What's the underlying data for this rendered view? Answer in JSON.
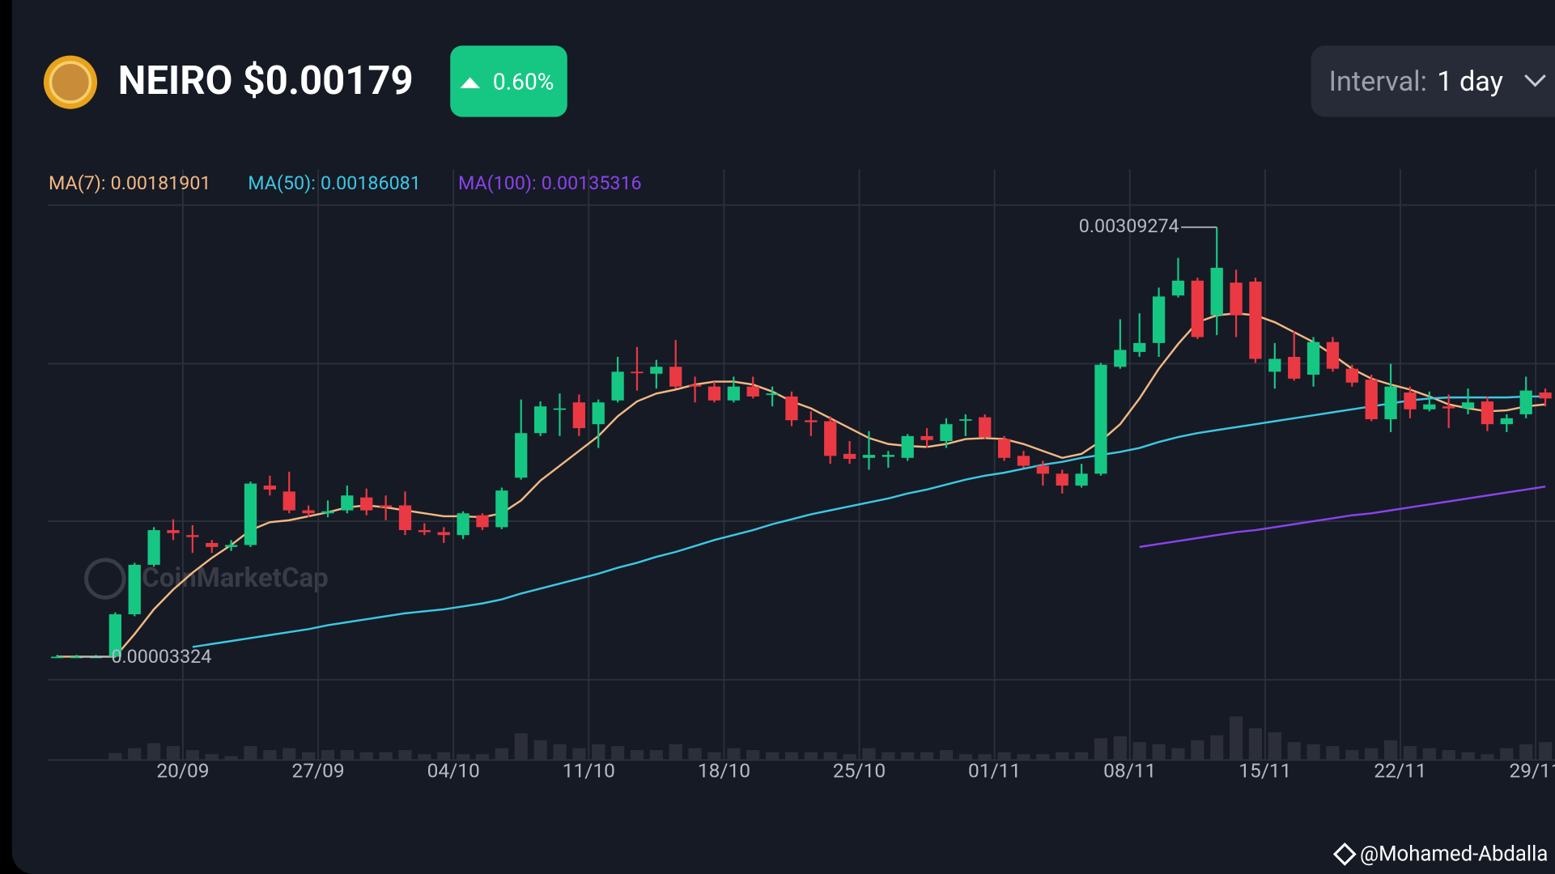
{
  "header": {
    "title": "NEIRO $0.00179",
    "change": "0.60%",
    "interval_label": "Interval:",
    "interval": "1 day"
  },
  "watermark": "CoinMarketCap",
  "credit": "@Mohamed-Abdalla",
  "chart_data": {
    "type": "candlestick",
    "up_color": "#16c784",
    "down_color": "#ea3943",
    "volume_color": "#2c2f3a",
    "grid": true,
    "ylim": [
      -0.00013,
      0.00325
    ],
    "categories": [
      null,
      null,
      null,
      null,
      null,
      null,
      null,
      "20/09",
      null,
      null,
      null,
      null,
      null,
      null,
      "27/09",
      null,
      null,
      null,
      null,
      null,
      null,
      "04/10",
      null,
      null,
      null,
      null,
      null,
      null,
      "11/10",
      null,
      null,
      null,
      null,
      null,
      null,
      "18/10",
      null,
      null,
      null,
      null,
      null,
      null,
      "25/10",
      null,
      null,
      null,
      null,
      null,
      null,
      "01/11",
      null,
      null,
      null,
      null,
      null,
      null,
      "08/11",
      null,
      null,
      null,
      null,
      null,
      null,
      "15/11",
      null,
      null,
      null,
      null,
      null,
      null,
      "22/11",
      null,
      null,
      null,
      null,
      null,
      null,
      "29/11"
    ],
    "open": [
      3.45e-05,
      3.45e-05,
      3.45e-05,
      3.45e-05,
      0.0003364,
      0.0006889,
      0.0009356,
      0.0009004,
      0.000844,
      0.0008158,
      0.0008299,
      0.0012529,
      0.0012106,
      0.0010766,
      0.0010555,
      0.0010766,
      0.0011683,
      0.0011119,
      0.0011119,
      0.0009356,
      0.0009215,
      0.0009004,
      0.0010414,
      0.0009568,
      0.0013093,
      0.0016265,
      0.0017957,
      0.0018451,
      0.00169,
      0.0018592,
      0.0020636,
      0.0020495,
      0.0020989,
      0.001972,
      0.0019579,
      0.0018592,
      0.0019579,
      0.0019015,
      0.0018874,
      0.0017182,
      0.0017111,
      0.0014785,
      0.0014503,
      0.0014573,
      0.0014503,
      0.0016054,
      0.0015701,
      0.0017182,
      0.0017393,
      0.0015842,
      0.0014644,
      0.0013939,
      0.0013375,
      0.0012529,
      0.0013375,
      0.0020989,
      0.0022046,
      0.0022681,
      0.0026065,
      0.0027122,
      0.0024655,
      0.0026981,
      0.0027052,
      0.0020636,
      0.0021694,
      0.0020425,
      0.0022751,
      0.0020848,
      0.0020072,
      0.0017252,
      0.0019156,
      0.0017957,
      0.0018169,
      0.0018028,
      0.0018521,
      0.00169,
      0.0017605,
      0.0019156
    ],
    "high": [
      4.73e-05,
      4.73e-05,
      4.73e-05,
      0.0003505,
      0.000703,
      0.0009568,
      0.0010131,
      0.0009709,
      0.0008651,
      0.0008651,
      0.0012811,
      0.0013234,
      0.0013516,
      0.0011119,
      0.0011471,
      0.0012529,
      0.0012317,
      0.0011824,
      0.0012106,
      0.000985,
      0.0009568,
      0.0010696,
      0.0010555,
      0.0012388,
      0.0018662,
      0.0018521,
      0.0019085,
      0.0019015,
      0.0018662,
      0.0021694,
      0.0022399,
      0.0021482,
      0.0022892,
      0.0020284,
      0.0019931,
      0.0020284,
      0.0020284,
      0.0019579,
      0.0019226,
      0.0017816,
      0.0017464,
      0.0015701,
      0.0016406,
      0.0014996,
      0.0016195,
      0.0016618,
      0.0017323,
      0.0017605,
      0.0017605,
      0.0016054,
      0.0014996,
      0.0014291,
      0.0013657,
      0.001408,
      0.0021271,
      0.0024373,
      0.0024796,
      0.0026629,
      0.0028744,
      0.0027334,
      0.00309274,
      0.0027898,
      0.0027334,
      0.0022681,
      0.0023527,
      0.0023104,
      0.0023104,
      0.002113,
      0.0020425,
      0.00212,
      0.0019579,
      0.0019226,
      0.0019015,
      0.0019438,
      0.0018874,
      0.0017605,
      0.0020284,
      0.0019438
    ],
    "low": [
      3.4e-05,
      3.4e-05,
      3.4e-05,
      3.324e-05,
      0.0003223,
      0.0006748,
      0.0008651,
      0.0007735,
      0.0007735,
      0.0007876,
      0.0008158,
      0.0011824,
      0.0010555,
      0.0010273,
      0.0010273,
      0.0010555,
      0.0010414,
      0.0010061,
      0.0009004,
      0.0009004,
      0.000844,
      0.0008722,
      0.0009356,
      0.0009427,
      0.0012952,
      0.0016054,
      0.0016054,
      0.0016054,
      0.0015208,
      0.0018451,
      0.0019297,
      0.0019438,
      0.0019438,
      0.0018451,
      0.0018451,
      0.0018451,
      0.0018733,
      0.0018169,
      0.0016759,
      0.0016054,
      0.001408,
      0.001408,
      0.0013657,
      0.0013798,
      0.0014291,
      0.0015208,
      0.0015208,
      0.0016054,
      0.0015842,
      0.0014291,
      0.0013798,
      0.0012529,
      0.0011965,
      0.0012388,
      0.0013234,
      0.0020848,
      0.0021694,
      0.0021694,
      0.0025924,
      0.0022963,
      0.0023245,
      0.0023104,
      0.0021271,
      0.0019438,
      0.0020002,
      0.0019579,
      0.0020636,
      0.0019579,
      0.0017111,
      0.0016336,
      0.0017323,
      0.0017816,
      0.0016618,
      0.0017605,
      0.0016406,
      0.0016336,
      0.0017323,
      0.0018169
    ],
    "close": [
      3.45e-05,
      3.45e-05,
      3.45e-05,
      0.0003364,
      0.0006889,
      0.0009356,
      0.0009145,
      0.0008863,
      0.0008158,
      0.0008299,
      0.001267,
      0.0012247,
      0.0010766,
      0.0010555,
      0.0010696,
      0.0011824,
      0.0010766,
      0.0010978,
      0.0009356,
      0.0009215,
      0.0009004,
      0.0010555,
      0.0009568,
      0.0012176,
      0.0016265,
      0.0018169,
      0.0018028,
      0.0016618,
      0.0018451,
      0.0020636,
      0.0020566,
      0.0020989,
      0.0019579,
      0.0019579,
      0.0018592,
      0.0019579,
      0.0018874,
      0.0019085,
      0.0017182,
      0.0017041,
      0.0014644,
      0.0014432,
      0.0014714,
      0.0014714,
      0.0016054,
      0.0015772,
      0.00169,
      0.0017252,
      0.0015983,
      0.0014503,
      0.0013939,
      0.0013375,
      0.0012529,
      0.0013375,
      0.002113,
      0.0022187,
      0.0022681,
      0.0025994,
      0.0027122,
      0.0023104,
      0.0028039,
      0.0024655,
      0.0021553,
      0.0021553,
      0.0020143,
      0.0022751,
      0.0020848,
      0.0019861,
      0.0017252,
      0.0019579,
      0.0017957,
      0.001831,
      0.0018028,
      0.0018451,
      0.00169,
      0.0017323,
      0.0019297,
      0.0018733
    ],
    "volume": [
      0,
      0,
      0,
      7,
      12,
      17,
      14,
      10,
      6,
      4,
      14,
      10,
      12,
      8,
      10,
      10,
      8,
      8,
      10,
      6,
      8,
      6,
      6,
      12,
      27,
      20,
      16,
      12,
      16,
      14,
      10,
      10,
      16,
      12,
      8,
      12,
      10,
      8,
      8,
      8,
      8,
      6,
      12,
      8,
      8,
      8,
      10,
      6,
      6,
      8,
      6,
      6,
      8,
      8,
      22,
      24,
      18,
      16,
      12,
      20,
      25,
      44,
      32,
      28,
      18,
      16,
      14,
      10,
      12,
      20,
      14,
      12,
      10,
      8,
      6,
      12,
      16,
      18
    ],
    "series": [
      {
        "name": "MA(7):",
        "current": 0.00181901,
        "color": "#f2b982",
        "values": [
          3.45e-05,
          3.45e-05,
          3.45e-05,
          3.45e-05,
          0.0001954,
          0.0003716,
          0.0005126,
          0.0006325,
          0.0007382,
          0.0008299,
          0.0009356,
          0.000992,
          0.0010061,
          0.0010343,
          0.0010625,
          0.0010978,
          0.0011119,
          0.0010978,
          0.0010766,
          0.0010555,
          0.0010343,
          0.0010343,
          0.0010273,
          0.0010555,
          0.0011471,
          0.0012881,
          0.0013939,
          0.0014996,
          0.0016054,
          0.0017464,
          0.0018521,
          0.0019085,
          0.0019367,
          0.001972,
          0.0019931,
          0.0019931,
          0.001972,
          0.0019226,
          0.0018521,
          0.0018028,
          0.0017323,
          0.0016618,
          0.0015913,
          0.001549,
          0.0015349,
          0.0015278,
          0.001549,
          0.0015842,
          0.0015913,
          0.0015842,
          0.001549,
          0.0014996,
          0.0014503,
          0.0014785,
          0.0015701,
          0.00169,
          0.0018733,
          0.0020848,
          0.002261,
          0.0024161,
          0.0024655,
          0.0024796,
          0.0024655,
          0.0024161,
          0.0023456,
          0.0022751,
          0.0021835,
          0.0020848,
          0.0020143,
          0.001972,
          0.0019367,
          0.0018874,
          0.001831,
          0.0018028,
          0.0017816,
          0.0017887,
          0.0018169,
          0.001831
        ]
      },
      {
        "name": "MA(50):",
        "current": 0.00186081,
        "color": "#3cc8e4",
        "values": [
          null,
          null,
          null,
          null,
          null,
          null,
          null,
          0.0001037,
          0.0001249,
          0.000146,
          0.0001672,
          0.0001883,
          0.0002095,
          0.0002306,
          0.0002588,
          0.00028,
          0.0003011,
          0.0003223,
          0.0003434,
          0.0003575,
          0.0003716,
          0.0003928,
          0.0004139,
          0.0004421,
          0.0004844,
          0.0005197,
          0.0005549,
          0.0005902,
          0.0006254,
          0.0006677,
          0.000703,
          0.0007453,
          0.0007805,
          0.0008228,
          0.0008651,
          0.0009004,
          0.0009356,
          0.0009779,
          0.0010131,
          0.0010484,
          0.0010766,
          0.0011048,
          0.001133,
          0.0011612,
          0.0011965,
          0.0012247,
          0.0012599,
          0.0012952,
          0.0013234,
          0.0013445,
          0.0013727,
          0.0014009,
          0.0014221,
          0.0014503,
          0.0014714,
          0.0014926,
          0.0015208,
          0.0015631,
          0.0015983,
          0.0016265,
          0.0016477,
          0.0016688,
          0.00169,
          0.0017111,
          0.0017323,
          0.0017534,
          0.0017746,
          0.0017957,
          0.0018169,
          0.001838,
          0.0018592,
          0.0018733,
          0.0018803,
          0.0018803,
          0.0018803,
          0.0018803,
          0.0018874,
          0.0018874
        ]
      },
      {
        "name": "MA(100):",
        "current": 0.00135316,
        "color": "#8a43ee",
        "values": [
          null,
          null,
          null,
          null,
          null,
          null,
          null,
          null,
          null,
          null,
          null,
          null,
          null,
          null,
          null,
          null,
          null,
          null,
          null,
          null,
          null,
          null,
          null,
          null,
          null,
          null,
          null,
          null,
          null,
          null,
          null,
          null,
          null,
          null,
          null,
          null,
          null,
          null,
          null,
          null,
          null,
          null,
          null,
          null,
          null,
          null,
          null,
          null,
          null,
          null,
          null,
          null,
          null,
          null,
          null,
          null,
          0.0008158,
          0.0008369,
          0.0008581,
          0.0008792,
          0.0009004,
          0.0009215,
          0.0009356,
          0.0009568,
          0.0009779,
          0.0009991,
          0.0010202,
          0.0010414,
          0.0010555,
          0.0010766,
          0.0010978,
          0.0011189,
          0.0011401,
          0.0011612,
          0.0011824,
          0.0012035,
          0.0012247,
          0.0012458
        ]
      }
    ]
  }
}
